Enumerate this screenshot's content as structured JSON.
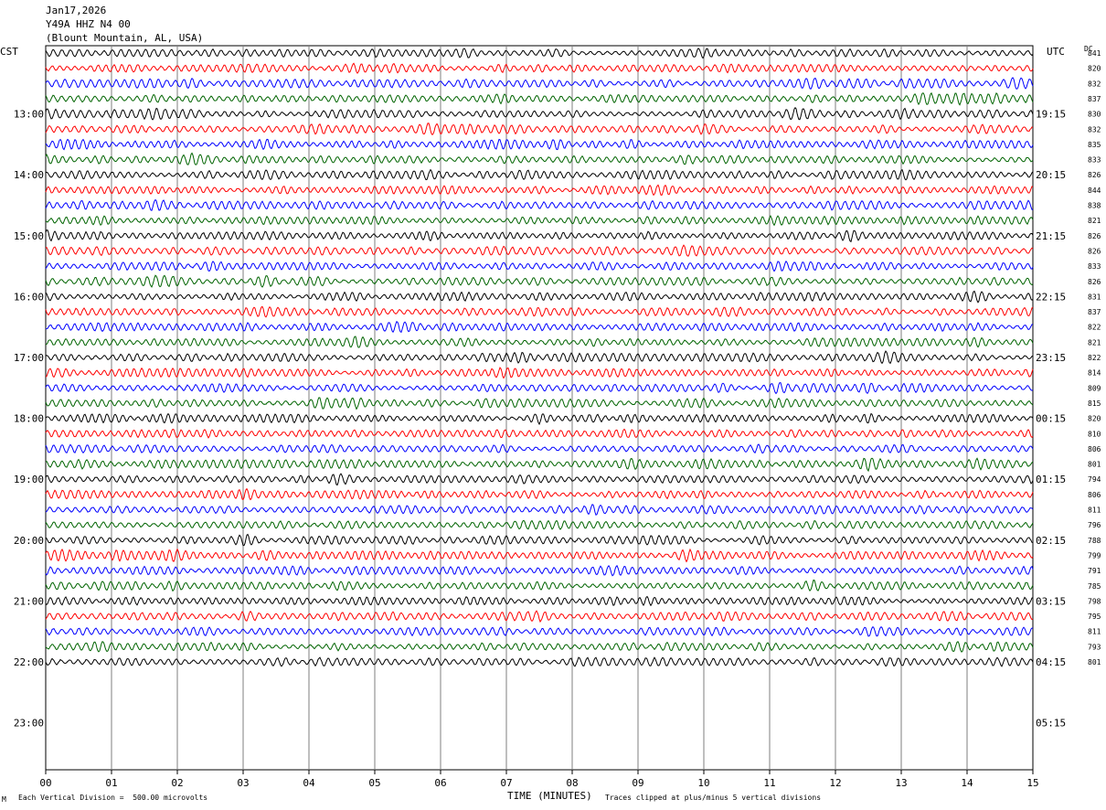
{
  "header": {
    "date": "Jan17,2026",
    "station": "Y49A HHZ N4 00",
    "location": "(Blount Mountain, AL, USA)"
  },
  "left_zone": "CST",
  "right_zone": "UTC",
  "dc_label": "DC",
  "footer": {
    "division": "Each Vertical Division =  500.00 microvolts",
    "time_label": "TIME (MINUTES)",
    "clip": "Traces clipped at plus/minus 5 vertical divisions",
    "corner_mark": "M"
  },
  "chart_data": {
    "type": "line",
    "xlabel": "TIME (MINUTES)",
    "x_ticks": [
      "00",
      "01",
      "02",
      "03",
      "04",
      "05",
      "06",
      "07",
      "08",
      "09",
      "10",
      "11",
      "12",
      "13",
      "14",
      "15"
    ],
    "xlim": [
      0,
      15
    ],
    "left_hour_labels": [
      "13:00",
      "14:00",
      "15:00",
      "16:00",
      "17:00",
      "18:00",
      "19:00",
      "20:00",
      "21:00",
      "22:00",
      "23:00"
    ],
    "right_hour_labels": [
      "19:15",
      "20:15",
      "21:15",
      "22:15",
      "23:15",
      "00:15",
      "01:15",
      "02:15",
      "03:15",
      "04:15",
      "05:15"
    ],
    "trace_colors": [
      "#000000",
      "#ff0000",
      "#0000ff",
      "#006400"
    ],
    "traces_per_hour": 4,
    "trace_count": 41,
    "dc_values": [
      "841",
      "820",
      "832",
      "837",
      "830",
      "832",
      "835",
      "833",
      "826",
      "844",
      "838",
      "821",
      "826",
      "826",
      "833",
      "826",
      "831",
      "837",
      "822",
      "821",
      "822",
      "814",
      "809",
      "815",
      "820",
      "810",
      "806",
      "801",
      "794",
      "806",
      "811",
      "796",
      "788",
      "799",
      "791",
      "785",
      "798",
      "795",
      "811",
      "793",
      "801"
    ]
  }
}
